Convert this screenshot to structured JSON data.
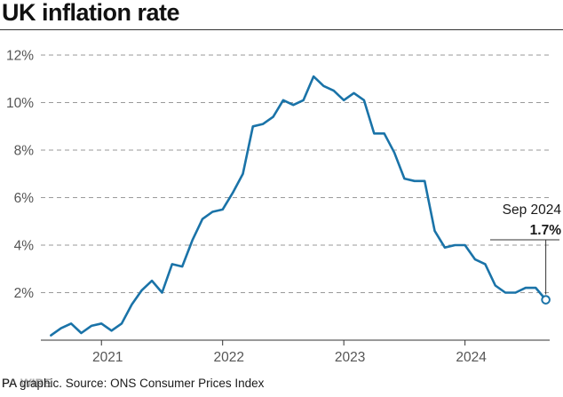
{
  "header": {
    "title": "UK inflation rate"
  },
  "footer": {
    "source": "PA graphic. Source: ONS Consumer Prices Index",
    "credit": "PA WIRE"
  },
  "colors": {
    "line": "#1a73a8",
    "grid": "#9a9a9a",
    "axis": "#333333",
    "text": "#1a1a1a",
    "tick_text": "#555555"
  },
  "chart_data": {
    "type": "line",
    "title": "UK inflation rate",
    "xlabel": "",
    "ylabel": "",
    "ylim": [
      0,
      12
    ],
    "xlim": [
      "2020-07",
      "2024-10"
    ],
    "y_ticks": [
      2,
      4,
      6,
      8,
      10,
      12
    ],
    "y_tick_labels": [
      "2%",
      "4%",
      "6%",
      "8%",
      "10%",
      "12%"
    ],
    "x_tick_labels": [
      "2021",
      "2022",
      "2023",
      "2024"
    ],
    "x_tick_positions": [
      "2021-01",
      "2022-01",
      "2023-01",
      "2024-01"
    ],
    "grid": true,
    "series": [
      {
        "x": [
          "2020-08",
          "2020-09",
          "2020-10",
          "2020-11",
          "2020-12",
          "2021-01",
          "2021-02",
          "2021-03",
          "2021-04",
          "2021-05",
          "2021-06",
          "2021-07",
          "2021-08",
          "2021-09",
          "2021-10",
          "2021-11",
          "2021-12",
          "2022-01",
          "2022-02",
          "2022-03",
          "2022-04",
          "2022-05",
          "2022-06",
          "2022-07",
          "2022-08",
          "2022-09",
          "2022-10",
          "2022-11",
          "2022-12",
          "2023-01",
          "2023-02",
          "2023-03",
          "2023-04",
          "2023-05",
          "2023-06",
          "2023-07",
          "2023-08",
          "2023-09",
          "2023-10",
          "2023-11",
          "2023-12",
          "2024-01",
          "2024-02",
          "2024-03",
          "2024-04",
          "2024-05",
          "2024-06",
          "2024-07",
          "2024-08",
          "2024-09"
        ],
        "values": [
          0.2,
          0.5,
          0.7,
          0.3,
          0.6,
          0.7,
          0.4,
          0.7,
          1.5,
          2.1,
          2.5,
          2.0,
          3.2,
          3.1,
          4.2,
          5.1,
          5.4,
          5.5,
          6.2,
          7.0,
          9.0,
          9.1,
          9.4,
          10.1,
          9.9,
          10.1,
          11.1,
          10.7,
          10.5,
          10.1,
          10.4,
          10.1,
          8.7,
          8.7,
          7.9,
          6.8,
          6.7,
          6.7,
          4.6,
          3.9,
          4.0,
          4.0,
          3.4,
          3.2,
          2.3,
          2.0,
          2.0,
          2.2,
          2.2,
          1.7
        ]
      }
    ],
    "annotation": {
      "date_label": "Sep 2024",
      "value_label": "1.7%",
      "x": "2024-09",
      "y": 1.7
    }
  }
}
